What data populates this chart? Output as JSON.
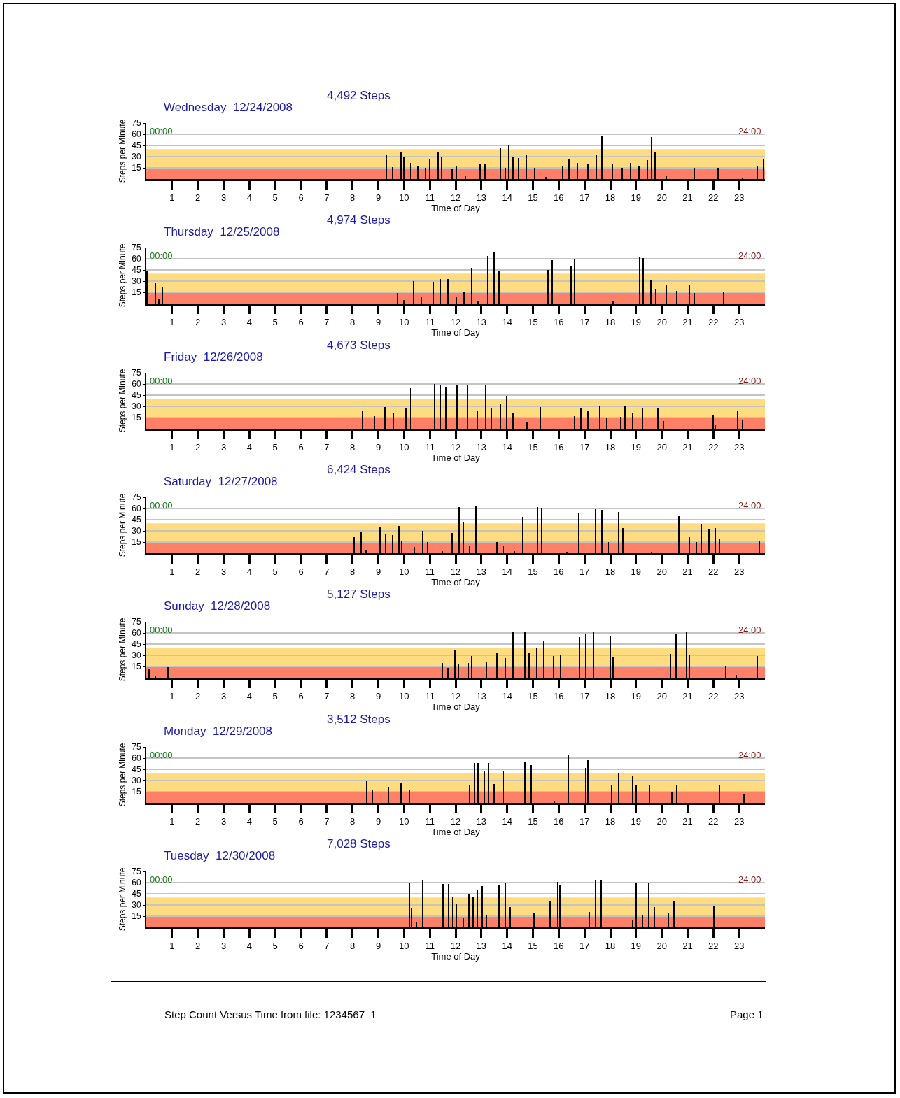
{
  "chart_data": [
    {
      "type": "bar",
      "title": "Wednesday  12/24/2008",
      "subtitle": "4,492 Steps",
      "xlabel": "Time of Day",
      "ylabel": "Steps per Minute",
      "color": "#000000",
      "xlim": [
        0,
        24
      ],
      "xticks": [
        1,
        2,
        3,
        4,
        5,
        6,
        7,
        8,
        9,
        10,
        11,
        12,
        13,
        14,
        15,
        16,
        17,
        18,
        19,
        20,
        21,
        22,
        23
      ],
      "ylim": [
        0,
        75
      ],
      "yticks": [
        15,
        30,
        45,
        60,
        75
      ],
      "grid": "y",
      "annotations": [
        "00:00",
        "24:00"
      ],
      "bands": [
        {
          "axis": "y",
          "from": 0,
          "to": 15,
          "color": "#ff8066"
        },
        {
          "axis": "y",
          "from": 15,
          "to": 40,
          "color": "#ffdc80"
        }
      ],
      "x": [
        9.31,
        9.56,
        9.88,
        10.0,
        10.25,
        10.54,
        10.82,
        11.0,
        11.33,
        11.45,
        11.86,
        12.04,
        12.38,
        12.94,
        13.14,
        13.73,
        13.94,
        14.07,
        14.22,
        14.45,
        14.75,
        14.89,
        15.07,
        15.5,
        16.16,
        16.4,
        16.73,
        17.14,
        17.47,
        17.68,
        18.08,
        18.46,
        18.79,
        19.11,
        19.44,
        19.61,
        19.74,
        20.18,
        21.25,
        22.18,
        23.14,
        23.71,
        23.95
      ],
      "values": [
        32,
        16,
        37,
        29,
        22,
        17,
        15,
        26,
        37,
        29,
        13,
        18,
        4,
        21,
        21,
        42,
        15,
        45,
        29,
        28,
        33,
        32,
        15,
        3,
        18,
        27,
        22,
        20,
        32,
        57,
        20,
        15,
        22,
        17,
        25,
        56,
        37,
        4,
        15,
        15,
        2,
        17,
        26
      ]
    },
    {
      "type": "bar",
      "title": "Thursday  12/25/2008",
      "subtitle": "4,974 Steps",
      "xlabel": "Time of Day",
      "ylabel": "Steps per Minute",
      "color": "#000000",
      "xlim": [
        0,
        24
      ],
      "xticks": [
        1,
        2,
        3,
        4,
        5,
        6,
        7,
        8,
        9,
        10,
        11,
        12,
        13,
        14,
        15,
        16,
        17,
        18,
        19,
        20,
        21,
        22,
        23
      ],
      "ylim": [
        0,
        75
      ],
      "yticks": [
        15,
        30,
        45,
        60,
        75
      ],
      "grid": "y",
      "annotations": [
        "00:00",
        "24:00"
      ],
      "bands": [
        {
          "axis": "y",
          "from": 0,
          "to": 15,
          "color": "#ff8066"
        },
        {
          "axis": "y",
          "from": 15,
          "to": 40,
          "color": "#ffdc80"
        }
      ],
      "x": [
        0.03,
        0.15,
        0.36,
        0.49,
        0.64,
        9.75,
        10.0,
        10.36,
        10.66,
        11.12,
        11.4,
        11.69,
        12.02,
        12.33,
        12.61,
        12.87,
        13.25,
        13.5,
        13.69,
        15.58,
        15.75,
        16.49,
        16.62,
        18.1,
        19.15,
        19.28,
        19.57,
        19.77,
        20.18,
        20.59,
        21.08,
        21.25,
        22.4
      ],
      "values": [
        44,
        27,
        28,
        6,
        22,
        14,
        5,
        30,
        8,
        29,
        33,
        33,
        8,
        15,
        48,
        3,
        64,
        68,
        43,
        45,
        58,
        50,
        59,
        3,
        63,
        61,
        32,
        20,
        25,
        17,
        25,
        14,
        16
      ]
    },
    {
      "type": "bar",
      "title": "Friday  12/26/2008",
      "subtitle": "4,673 Steps",
      "xlabel": "Time of Day",
      "ylabel": "Steps per Minute",
      "color": "#000000",
      "xlim": [
        0,
        24
      ],
      "xticks": [
        1,
        2,
        3,
        4,
        5,
        6,
        7,
        8,
        9,
        10,
        11,
        12,
        13,
        14,
        15,
        16,
        17,
        18,
        19,
        20,
        21,
        22,
        23
      ],
      "ylim": [
        0,
        75
      ],
      "yticks": [
        15,
        30,
        45,
        60,
        75
      ],
      "grid": "y",
      "annotations": [
        "00:00",
        "24:00"
      ],
      "bands": [
        {
          "axis": "y",
          "from": 0,
          "to": 15,
          "color": "#ff8066"
        },
        {
          "axis": "y",
          "from": 15,
          "to": 40,
          "color": "#ffdc80"
        }
      ],
      "x": [
        8.39,
        8.85,
        9.26,
        9.59,
        10.08,
        10.25,
        11.18,
        11.4,
        11.61,
        12.05,
        12.46,
        12.84,
        13.17,
        13.4,
        13.74,
        13.97,
        14.22,
        14.78,
        15.29,
        16.62,
        16.85,
        17.14,
        17.6,
        17.85,
        18.41,
        18.57,
        18.87,
        19.24,
        19.85,
        20.07,
        21.99,
        22.07,
        22.94,
        23.13
      ],
      "values": [
        23,
        17,
        29,
        21,
        28,
        54,
        60,
        58,
        56,
        58,
        59,
        24,
        58,
        27,
        34,
        44,
        22,
        8,
        29,
        17,
        27,
        23,
        31,
        15,
        16,
        31,
        22,
        28,
        27,
        10,
        18,
        5,
        23,
        11
      ]
    },
    {
      "type": "bar",
      "title": "Saturday  12/27/2008",
      "subtitle": "6,424 Steps",
      "xlabel": "Time of Day",
      "ylabel": "Steps per Minute",
      "color": "#000000",
      "xlim": [
        0,
        24
      ],
      "xticks": [
        1,
        2,
        3,
        4,
        5,
        6,
        7,
        8,
        9,
        10,
        11,
        12,
        13,
        14,
        15,
        16,
        17,
        18,
        19,
        20,
        21,
        22,
        23
      ],
      "ylim": [
        0,
        75
      ],
      "yticks": [
        15,
        30,
        45,
        60,
        75
      ],
      "grid": "y",
      "annotations": [
        "00:00",
        "24:00"
      ],
      "bands": [
        {
          "axis": "y",
          "from": 0,
          "to": 15,
          "color": "#ff8066"
        },
        {
          "axis": "y",
          "from": 15,
          "to": 40,
          "color": "#ffdc80"
        }
      ],
      "x": [
        8.06,
        8.33,
        8.52,
        9.06,
        9.29,
        9.56,
        9.79,
        9.92,
        10.41,
        10.71,
        10.9,
        11.48,
        11.86,
        12.13,
        12.3,
        12.54,
        12.79,
        12.91,
        13.61,
        13.86,
        14.27,
        14.6,
        15.17,
        15.34,
        16.32,
        16.78,
        16.98,
        17.42,
        17.67,
        17.93,
        18.33,
        18.49,
        19.61,
        20.67,
        21.08,
        21.33,
        21.54,
        21.82,
        22.07,
        22.23,
        23.79
      ],
      "values": [
        22,
        29,
        5,
        35,
        25,
        24,
        37,
        17,
        8,
        30,
        15,
        3,
        27,
        62,
        42,
        10,
        64,
        37,
        15,
        10,
        3,
        49,
        62,
        61,
        1,
        54,
        50,
        59,
        58,
        15,
        55,
        34,
        1,
        50,
        22,
        15,
        39,
        32,
        34,
        20,
        17
      ]
    },
    {
      "type": "bar",
      "title": "Sunday  12/28/2008",
      "subtitle": "5,127 Steps",
      "xlabel": "Time of Day",
      "ylabel": "Steps per Minute",
      "color": "#000000",
      "xlim": [
        0,
        24
      ],
      "xticks": [
        1,
        2,
        3,
        4,
        5,
        6,
        7,
        8,
        9,
        10,
        11,
        12,
        13,
        14,
        15,
        16,
        17,
        18,
        19,
        20,
        21,
        22,
        23
      ],
      "ylim": [
        0,
        75
      ],
      "yticks": [
        15,
        30,
        45,
        60,
        75
      ],
      "grid": "y",
      "annotations": [
        "00:00",
        "24:00"
      ],
      "bands": [
        {
          "axis": "y",
          "from": 0,
          "to": 15,
          "color": "#ff8066"
        },
        {
          "axis": "y",
          "from": 15,
          "to": 40,
          "color": "#ffdc80"
        }
      ],
      "x": [
        0.1,
        0.36,
        0.84,
        11.48,
        11.69,
        11.97,
        12.1,
        12.5,
        12.63,
        13.2,
        13.61,
        13.94,
        14.22,
        14.68,
        14.84,
        15.14,
        15.42,
        15.8,
        16.08,
        16.81,
        17.06,
        17.34,
        18.0,
        18.1,
        20.35,
        20.56,
        20.95,
        21.08,
        22.48,
        22.89,
        23.71
      ],
      "values": [
        12,
        3,
        14,
        20,
        13,
        37,
        19,
        20,
        29,
        21,
        34,
        26,
        62,
        61,
        34,
        39,
        50,
        29,
        31,
        54,
        59,
        62,
        55,
        28,
        32,
        59,
        61,
        30,
        15,
        4,
        29
      ]
    },
    {
      "type": "bar",
      "title": "Monday  12/29/2008",
      "subtitle": "3,512 Steps",
      "xlabel": "Time of Day",
      "ylabel": "Steps per Minute",
      "color": "#000000",
      "xlim": [
        0,
        24
      ],
      "xticks": [
        1,
        2,
        3,
        4,
        5,
        6,
        7,
        8,
        9,
        10,
        11,
        12,
        13,
        14,
        15,
        16,
        17,
        18,
        19,
        20,
        21,
        22,
        23
      ],
      "ylim": [
        0,
        75
      ],
      "yticks": [
        15,
        30,
        45,
        60,
        75
      ],
      "grid": "y",
      "annotations": [
        "00:00",
        "24:00"
      ],
      "bands": [
        {
          "axis": "y",
          "from": 0,
          "to": 15,
          "color": "#ff8066"
        },
        {
          "axis": "y",
          "from": 15,
          "to": 40,
          "color": "#ffdc80"
        }
      ],
      "x": [
        8.56,
        8.77,
        9.39,
        9.88,
        10.2,
        12.55,
        12.74,
        12.87,
        13.12,
        13.28,
        13.5,
        13.86,
        14.68,
        14.93,
        15.83,
        16.37,
        17.06,
        17.14,
        18.05,
        18.33,
        18.87,
        19.0,
        19.52,
        20.39,
        20.59,
        22.23,
        23.19
      ],
      "values": [
        29,
        18,
        21,
        26,
        18,
        23,
        53,
        53,
        42,
        53,
        25,
        42,
        55,
        51,
        3,
        65,
        47,
        57,
        24,
        40,
        37,
        23,
        23,
        14,
        24,
        24,
        12
      ]
    },
    {
      "type": "bar",
      "title": "Tuesday  12/30/2008",
      "subtitle": "7,028 Steps",
      "xlabel": "Time of Day",
      "ylabel": "Steps per Minute",
      "color": "#000000",
      "xlim": [
        0,
        24
      ],
      "xticks": [
        1,
        2,
        3,
        4,
        5,
        6,
        7,
        8,
        9,
        10,
        11,
        12,
        13,
        14,
        15,
        16,
        17,
        18,
        19,
        20,
        21,
        22,
        23
      ],
      "ylim": [
        0,
        75
      ],
      "yticks": [
        15,
        30,
        45,
        60,
        75
      ],
      "grid": "y",
      "annotations": [
        "00:00",
        "24:00",
        "Step Count Versus Time from file: 1234567_1",
        "Page 1"
      ],
      "bands": [
        {
          "axis": "y",
          "from": 0,
          "to": 15,
          "color": "#ff8066"
        },
        {
          "axis": "y",
          "from": 15,
          "to": 40,
          "color": "#ffdc80"
        }
      ],
      "x": [
        10.21,
        10.28,
        10.49,
        10.71,
        11.51,
        11.72,
        11.89,
        12.02,
        12.3,
        12.51,
        12.68,
        12.84,
        13.04,
        13.2,
        13.69,
        13.94,
        14.11,
        15.04,
        15.67,
        15.95,
        16.04,
        17.19,
        17.42,
        17.64,
        18.87,
        19.0,
        19.25,
        19.48,
        19.72,
        20.26,
        20.48,
        22.02
      ],
      "values": [
        60,
        26,
        7,
        63,
        58,
        58,
        40,
        31,
        12,
        45,
        40,
        51,
        55,
        17,
        57,
        60,
        27,
        20,
        35,
        61,
        56,
        21,
        64,
        63,
        10,
        59,
        17,
        60,
        27,
        20,
        35,
        29
      ]
    }
  ]
}
